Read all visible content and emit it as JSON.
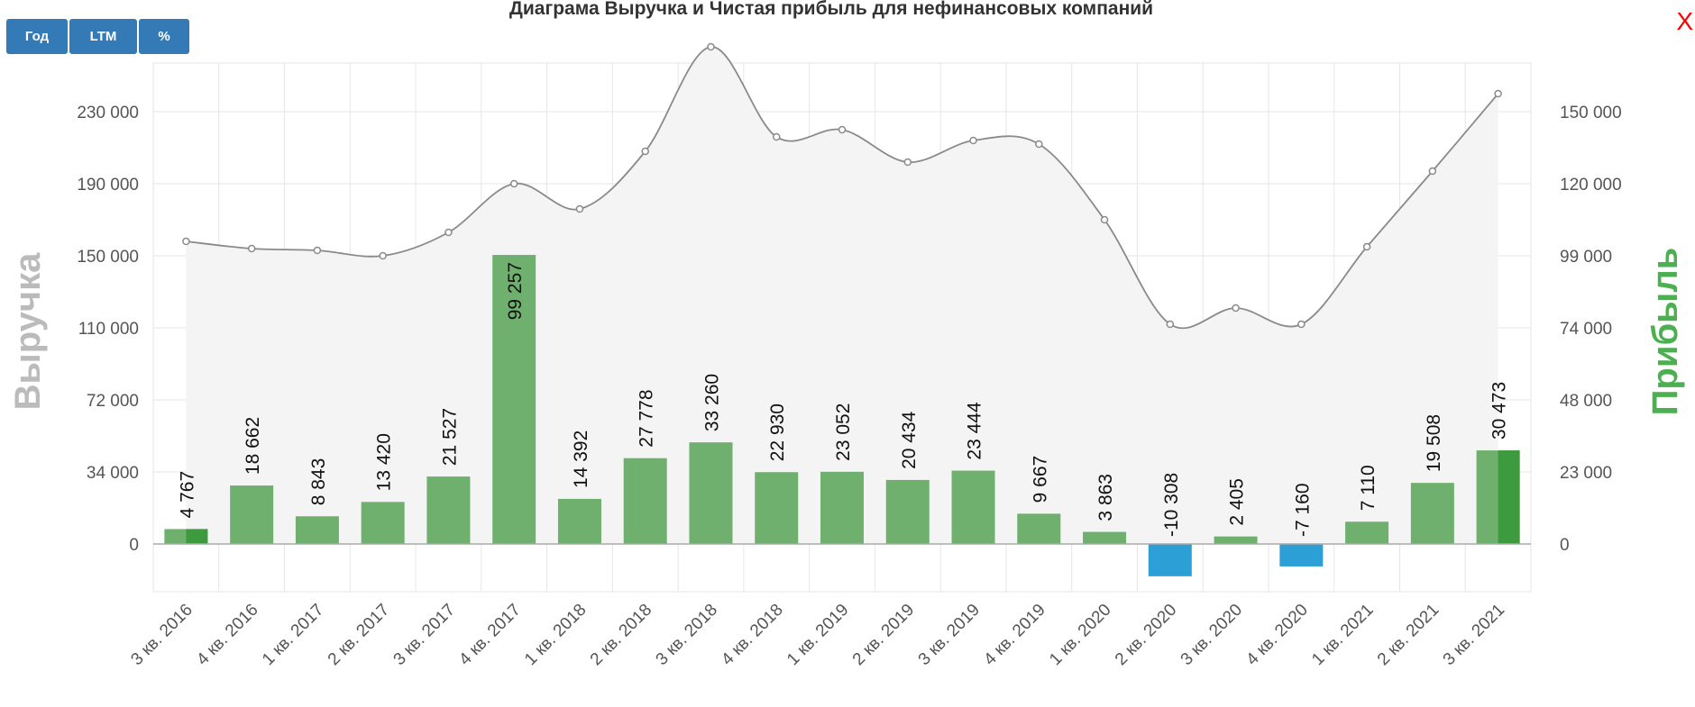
{
  "controls": {
    "buttons": [
      {
        "label": "Год"
      },
      {
        "label": "LTM"
      },
      {
        "label": "%"
      }
    ],
    "close_label": "X"
  },
  "chart_data": {
    "type": "bar",
    "title": "Диаграма Выручка и Чистая прибыль для нефинансовых компаний",
    "ylabel_left": "Выручка",
    "ylabel_right": "Прибыль",
    "categories": [
      "3 кв. 2016",
      "4 кв. 2016",
      "1 кв. 2017",
      "2 кв. 2017",
      "3 кв. 2017",
      "4 кв. 2017",
      "1 кв. 2018",
      "2 кв. 2018",
      "3 кв. 2018",
      "4 кв. 2018",
      "1 кв. 2019",
      "2 кв. 2019",
      "3 кв. 2019",
      "4 кв. 2019",
      "1 кв. 2020",
      "2 кв. 2020",
      "3 кв. 2020",
      "4 кв. 2020",
      "1 кв. 2021",
      "2 кв. 2021",
      "3 кв. 2021"
    ],
    "left_axis_ticks": [
      "0",
      "34 000",
      "72 000",
      "110 000",
      "150 000",
      "190 000",
      "230 000"
    ],
    "left_axis_values": [
      0,
      34000,
      72000,
      110000,
      150000,
      190000,
      230000
    ],
    "right_axis_ticks": [
      "0",
      "23 000",
      "48 000",
      "74 000",
      "99 000",
      "120 000",
      "150 000"
    ],
    "series": [
      {
        "name": "Выручка",
        "kind": "area-line",
        "axis": "left",
        "values": [
          158000,
          154000,
          153000,
          150000,
          163000,
          190000,
          176000,
          208000,
          266000,
          216000,
          220000,
          202000,
          214000,
          212000,
          170000,
          112000,
          121000,
          112000,
          155000,
          197000,
          240000
        ]
      },
      {
        "name": "Прибыль",
        "kind": "bar",
        "axis": "right",
        "values": [
          4767,
          18662,
          8843,
          13420,
          21527,
          99257,
          14392,
          27778,
          33260,
          22930,
          23052,
          20434,
          23444,
          9667,
          3863,
          -10308,
          2405,
          -7160,
          7110,
          19508,
          30473
        ],
        "labels": [
          "4 767",
          "18 662",
          "8 843",
          "13 420",
          "21 527",
          "99 257",
          "14 392",
          "27 778",
          "33 260",
          "22 930",
          "23 052",
          "20 434",
          "23 444",
          "9 667",
          "3 863",
          "-10 308",
          "2 405",
          "-7 160",
          "7 110",
          "19 508",
          "30 473"
        ]
      }
    ],
    "colors": {
      "bar_positive": "#6fb06f",
      "bar_negative": "#2b9fd6",
      "bar_highlight": "#3e9a3e",
      "area_fill": "#f4f4f4",
      "line": "#8a8a8a",
      "grid": "#e6e6e6",
      "zero_line": "#aaaaaa"
    },
    "highlighted_categories": [
      0,
      20
    ],
    "grid": true
  }
}
